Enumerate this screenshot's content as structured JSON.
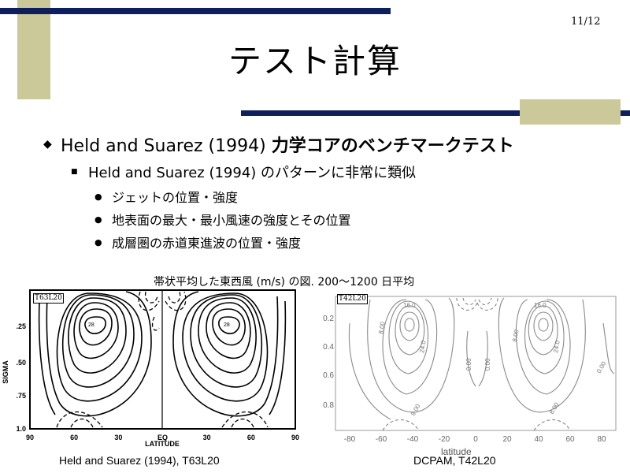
{
  "page_number": "11/12",
  "title": "テスト計算",
  "bullet1": {
    "latin": "Held and Suarez (1994) ",
    "jp": "力学コアのベンチマークテスト"
  },
  "bullet2": "Held and Suarez (1994) のパターンに非常に類似",
  "bullet3": [
    "ジェットの位置・強度",
    "地表面の最大・最小風速の強度とその位置",
    "成層圏の赤道東進波の位置・強度"
  ],
  "figure_caption": "帯状平均した東西風 (m/s) の図. 200～1200 日平均",
  "left_panel": {
    "tag": "T63L20",
    "y_label": "SIGMA",
    "y_ticks": [
      ".25",
      ".50",
      ".75",
      "1.0"
    ],
    "x_label": "LATITUDE",
    "x_ticks": [
      "90",
      "60",
      "30",
      "EQ",
      "30",
      "60",
      "90"
    ],
    "contour_labels": [
      "28",
      "28"
    ],
    "caption": "Held and Suarez (1994),  T63L20"
  },
  "right_panel": {
    "tag": "T42L20",
    "y_ticks": [
      "0.2",
      "0.4",
      "0.6",
      "0.8"
    ],
    "x_label": "latitude",
    "x_ticks": [
      "-80",
      "-60",
      "-40",
      "-20",
      "0",
      "20",
      "40",
      "60",
      "80"
    ],
    "contour_labels": [
      "16.0",
      "16.0",
      "8.00",
      "24.0",
      "0.00",
      "0.00",
      "8.00",
      "24.0",
      "0.00",
      "8.00",
      "8.00"
    ],
    "caption": "DCPAM,  T42L20"
  },
  "colors": {
    "navy": "#0f1f5c",
    "khaki": "#cbc89a"
  }
}
